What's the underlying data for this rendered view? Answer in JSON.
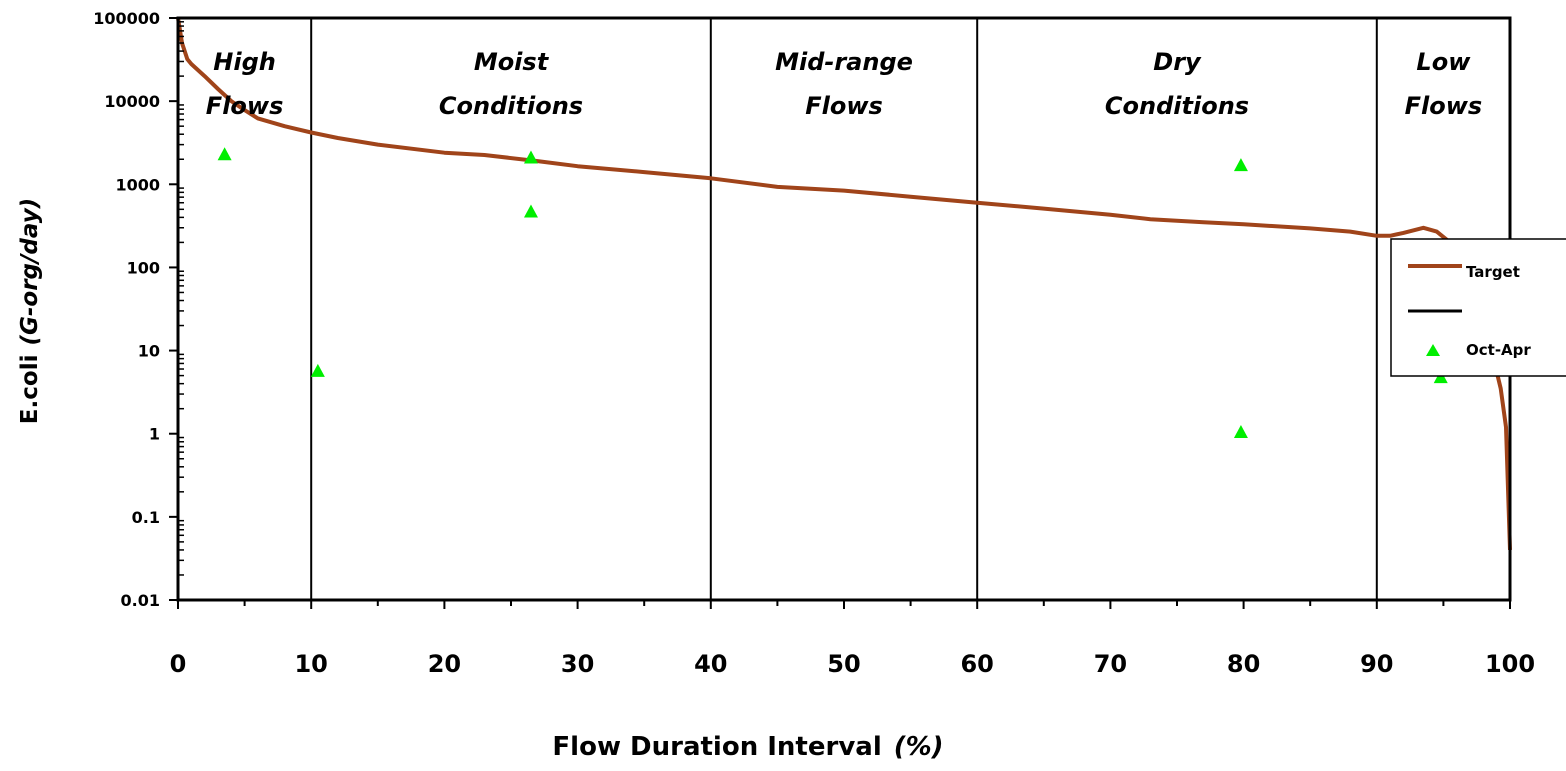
{
  "chart_data": {
    "type": "line",
    "title": "",
    "xlabel": "Flow Duration Interval",
    "xlabel_unit": "(%)",
    "ylabel": "E.coli",
    "ylabel_unit": "(G-org/day)",
    "xlim": [
      0,
      100
    ],
    "ylim": [
      0.01,
      100000
    ],
    "y_scale": "log",
    "x_ticks": [
      "0",
      "10",
      "20",
      "30",
      "40",
      "50",
      "60",
      "70",
      "80",
      "90",
      "100"
    ],
    "y_ticks": [
      "0.01",
      "0.1",
      "1",
      "10",
      "100",
      "1000",
      "10000",
      "100000"
    ],
    "grid": false,
    "legend_position": "right",
    "regions": [
      {
        "line1": "High",
        "line2": "Flows",
        "x_from": 0,
        "x_to": 10
      },
      {
        "line1": "Moist",
        "line2": "Conditions",
        "x_from": 10,
        "x_to": 40
      },
      {
        "line1": "Mid-range",
        "line2": "Flows",
        "x_from": 40,
        "x_to": 60
      },
      {
        "line1": "Dry",
        "line2": "Conditions",
        "x_from": 60,
        "x_to": 90
      },
      {
        "line1": "Low",
        "line2": "Flows",
        "x_from": 90,
        "x_to": 100
      }
    ],
    "region_boundaries": [
      10,
      40,
      60,
      90
    ],
    "series": [
      {
        "name": "Target",
        "style": "line",
        "color": "#a0441a",
        "x": [
          0,
          0.3,
          0.7,
          1,
          2,
          3,
          4,
          5,
          6,
          8,
          10,
          12,
          15,
          20,
          23,
          27,
          30,
          35,
          40,
          45,
          50,
          55,
          60,
          65,
          70,
          73,
          77,
          80,
          85,
          88,
          90,
          91,
          92,
          93.5,
          94.5,
          95.5,
          96.5,
          97.5,
          98.5,
          99.3,
          99.7,
          100
        ],
        "y": [
          100000,
          50000,
          32000,
          28000,
          20000,
          14000,
          10000,
          7800,
          6200,
          5000,
          4200,
          3600,
          3000,
          2400,
          2250,
          1900,
          1650,
          1400,
          1180,
          930,
          840,
          710,
          600,
          510,
          430,
          380,
          350,
          330,
          295,
          270,
          240,
          240,
          260,
          300,
          270,
          200,
          100,
          40,
          12,
          3.5,
          1.2,
          0.04
        ]
      },
      {
        "name": "Oct-Apr",
        "style": "marker",
        "marker": "triangle",
        "color": "#00ee00",
        "x": [
          3.5,
          10.5,
          26.5,
          26.5,
          79.8,
          79.8,
          94.8
        ],
        "y": [
          2300,
          5.7,
          2100,
          470,
          1700,
          1.05,
          4.8
        ]
      }
    ],
    "legend": [
      {
        "label": "Target",
        "kind": "line",
        "color": "#a0441a"
      },
      {
        "label": "",
        "kind": "line",
        "color": "#000000"
      },
      {
        "label": "Oct-Apr",
        "kind": "marker",
        "color": "#00ee00"
      }
    ]
  }
}
